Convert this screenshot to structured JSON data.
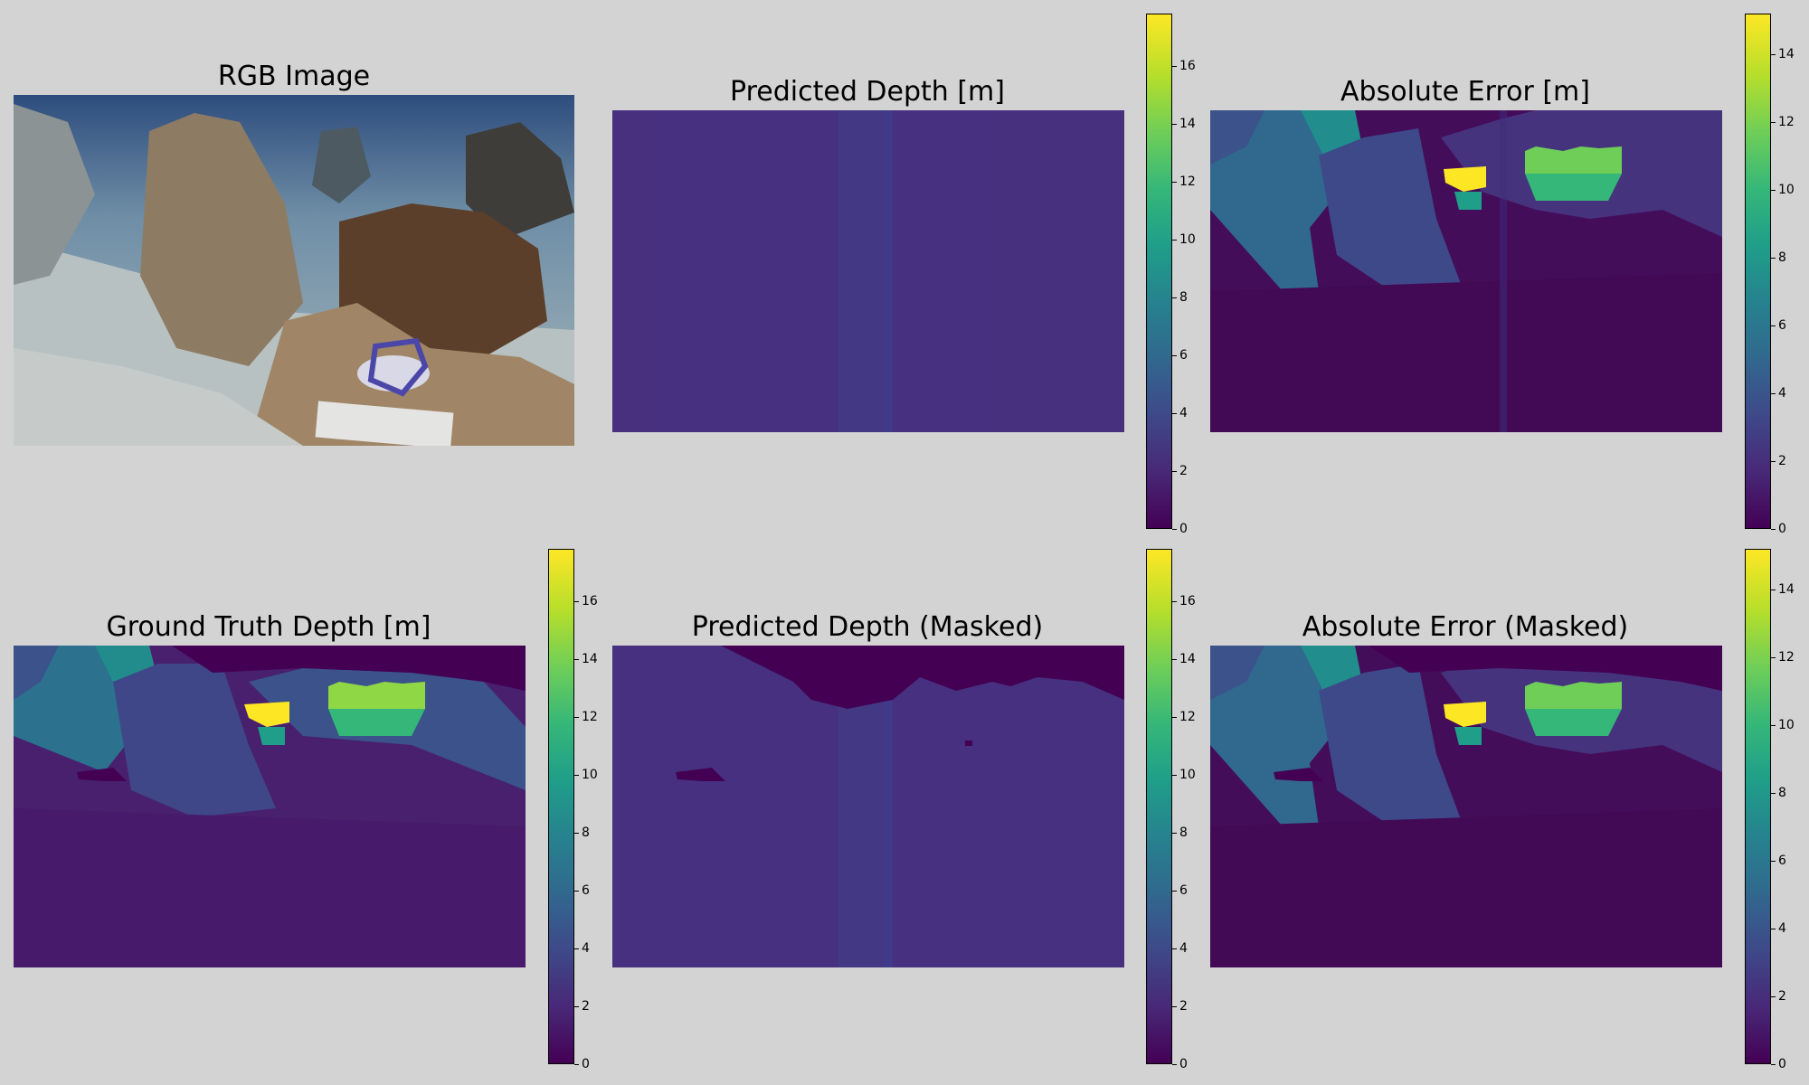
{
  "figure": {
    "titles": {
      "rgb": "RGB Image",
      "pred": "Predicted Depth [m]",
      "err": "Absolute Error [m]",
      "gt": "Ground Truth Depth [m]",
      "pred_masked": "Predicted Depth (Masked)",
      "err_masked": "Absolute Error (Masked)"
    }
  },
  "chart_data": [
    {
      "type": "heatmap",
      "title": "RGB Image",
      "colormap": "none",
      "content": "underwater photo of rocky seabed with measuring tape reel and white slate"
    },
    {
      "type": "heatmap",
      "title": "Predicted Depth [m]",
      "colormap": "viridis",
      "colorbar": {
        "min": 0,
        "max": 17.8,
        "ticks": [
          0,
          2,
          4,
          6,
          8,
          10,
          12,
          14,
          16
        ]
      },
      "approx_value": 2.7
    },
    {
      "type": "heatmap",
      "title": "Absolute Error [m]",
      "colormap": "viridis",
      "colorbar": {
        "min": 0,
        "max": 15.2,
        "ticks": [
          0,
          2,
          4,
          6,
          8,
          10,
          12,
          14
        ]
      },
      "approx_range": [
        0,
        15
      ]
    },
    {
      "type": "heatmap",
      "title": "Ground Truth Depth [m]",
      "colormap": "viridis",
      "colorbar": {
        "min": 0,
        "max": 17.8,
        "ticks": [
          0,
          2,
          4,
          6,
          8,
          10,
          12,
          14,
          16
        ]
      },
      "approx_range": [
        0,
        17.8
      ]
    },
    {
      "type": "heatmap",
      "title": "Predicted Depth (Masked)",
      "colormap": "viridis",
      "colorbar": {
        "min": 0,
        "max": 17.8,
        "ticks": [
          0,
          2,
          4,
          6,
          8,
          10,
          12,
          14,
          16
        ]
      },
      "approx_value": 2.7
    },
    {
      "type": "heatmap",
      "title": "Absolute Error (Masked)",
      "colormap": "viridis",
      "colorbar": {
        "min": 0,
        "max": 15.2,
        "ticks": [
          0,
          2,
          4,
          6,
          8,
          10,
          12,
          14
        ]
      },
      "approx_range": [
        0,
        15
      ]
    }
  ]
}
